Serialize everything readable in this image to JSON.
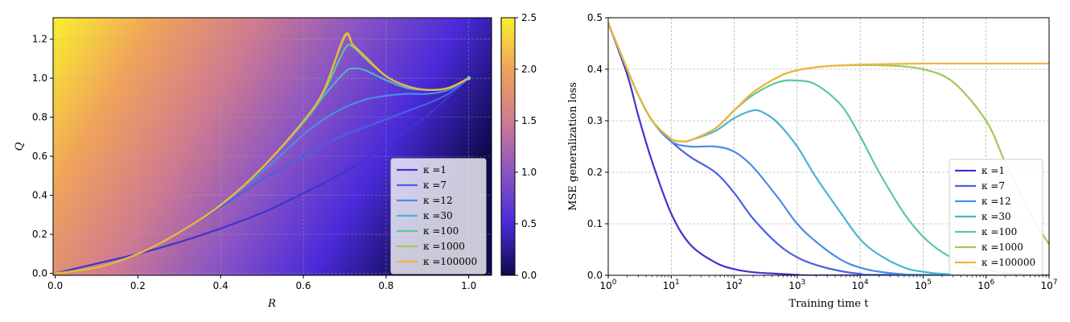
{
  "chart_data": [
    {
      "type": "line",
      "background": "heatmap",
      "xlabel": "R",
      "ylabel": "Q",
      "xlim": [
        -0.005,
        1.055
      ],
      "ylim": [
        -0.01,
        1.31
      ],
      "xticks": [
        "0.0",
        "0.2",
        "0.4",
        "0.6",
        "0.8",
        "1.0"
      ],
      "yticks": [
        "0.0",
        "0.2",
        "0.4",
        "0.6",
        "0.8",
        "1.0",
        "1.2"
      ],
      "grid": true,
      "legend_position": "lower-right",
      "colorbar": {
        "range": [
          0.0,
          2.5
        ],
        "ticks": [
          "0.0",
          "0.5",
          "1.0",
          "1.5",
          "2.0",
          "2.5"
        ],
        "colormap": "plasma-like",
        "colors": [
          "#0d0a4e",
          "#4a2ad9",
          "#8a55c4",
          "#d07b8f",
          "#f0a35a",
          "#f9f02e"
        ]
      },
      "series": [
        {
          "name": "κ =1",
          "color": "#3f34cd",
          "x": [
            0,
            0.1,
            0.2,
            0.3,
            0.4,
            0.5,
            0.6,
            0.7,
            0.8,
            0.9,
            1.0
          ],
          "y": [
            0,
            0.05,
            0.1,
            0.16,
            0.23,
            0.31,
            0.41,
            0.52,
            0.66,
            0.81,
            1.0
          ]
        },
        {
          "name": "κ =7",
          "color": "#4b60e4",
          "x": [
            0,
            0.1,
            0.2,
            0.3,
            0.4,
            0.5,
            0.6,
            0.65,
            0.7,
            0.75,
            0.8,
            0.85,
            0.9,
            0.95,
            1.0
          ],
          "y": [
            0,
            0.03,
            0.1,
            0.21,
            0.34,
            0.48,
            0.6,
            0.66,
            0.71,
            0.75,
            0.79,
            0.83,
            0.87,
            0.92,
            1.0
          ]
        },
        {
          "name": "κ =12",
          "color": "#4b8de6",
          "x": [
            0,
            0.1,
            0.2,
            0.3,
            0.4,
            0.5,
            0.6,
            0.65,
            0.7,
            0.75,
            0.8,
            0.85,
            0.9,
            0.95,
            1.0
          ],
          "y": [
            0,
            0.03,
            0.1,
            0.21,
            0.35,
            0.52,
            0.71,
            0.79,
            0.85,
            0.89,
            0.91,
            0.92,
            0.92,
            0.94,
            1.0
          ]
        },
        {
          "name": "κ =30",
          "color": "#4cb3cf",
          "x": [
            0,
            0.1,
            0.2,
            0.3,
            0.4,
            0.5,
            0.6,
            0.65,
            0.7,
            0.72,
            0.75,
            0.8,
            0.85,
            0.9,
            0.95,
            1.0
          ],
          "y": [
            0,
            0.03,
            0.1,
            0.21,
            0.35,
            0.54,
            0.77,
            0.91,
            1.03,
            1.05,
            1.04,
            0.99,
            0.95,
            0.94,
            0.95,
            1.0
          ]
        },
        {
          "name": "κ =100",
          "color": "#5cc89a",
          "x": [
            0,
            0.1,
            0.2,
            0.3,
            0.4,
            0.5,
            0.6,
            0.65,
            0.7,
            0.72,
            0.75,
            0.8,
            0.85,
            0.9,
            0.95,
            1.0
          ],
          "y": [
            0,
            0.03,
            0.1,
            0.21,
            0.35,
            0.54,
            0.78,
            0.93,
            1.15,
            1.16,
            1.1,
            1.01,
            0.96,
            0.94,
            0.95,
            1.0
          ]
        },
        {
          "name": "κ =1000",
          "color": "#a3c85a",
          "x": [
            0,
            0.1,
            0.2,
            0.3,
            0.4,
            0.5,
            0.6,
            0.65,
            0.7,
            0.72,
            0.75,
            0.8,
            0.85,
            0.9,
            0.95,
            1.0
          ],
          "y": [
            0,
            0.03,
            0.1,
            0.21,
            0.35,
            0.54,
            0.78,
            0.94,
            1.21,
            1.17,
            1.11,
            1.01,
            0.96,
            0.94,
            0.95,
            1.0
          ]
        },
        {
          "name": "κ =100000",
          "color": "#f0b43c",
          "x": [
            0,
            0.1,
            0.2,
            0.3,
            0.4,
            0.5,
            0.6,
            0.65,
            0.7,
            0.72,
            0.75,
            0.8,
            0.85,
            0.9,
            0.95,
            1.0
          ],
          "y": [
            0,
            0.03,
            0.1,
            0.21,
            0.35,
            0.54,
            0.78,
            0.94,
            1.22,
            1.17,
            1.11,
            1.01,
            0.96,
            0.94,
            0.95,
            1.0
          ]
        }
      ]
    },
    {
      "type": "line",
      "xlabel": "Training time t",
      "ylabel": "MSE generalization loss",
      "xscale": "log",
      "xlim": [
        1,
        10000000
      ],
      "ylim": [
        0,
        0.5
      ],
      "xticks": [
        "10^0",
        "10^1",
        "10^2",
        "10^3",
        "10^4",
        "10^5",
        "10^6",
        "10^7"
      ],
      "yticks": [
        "0.0",
        "0.1",
        "0.2",
        "0.3",
        "0.4",
        "0.5"
      ],
      "grid": true,
      "legend_position": "lower-right",
      "series": [
        {
          "name": "κ =1",
          "color": "#3f34cd",
          "x": [
            1,
            2,
            3,
            5,
            10,
            20,
            50,
            100,
            200,
            500,
            1000,
            3000,
            10000000
          ],
          "y": [
            0.49,
            0.39,
            0.31,
            0.22,
            0.12,
            0.06,
            0.025,
            0.012,
            0.006,
            0.003,
            0.001,
            0.0,
            0.0
          ]
        },
        {
          "name": "κ =7",
          "color": "#4b60e4",
          "x": [
            1,
            2,
            3,
            5,
            10,
            20,
            50,
            100,
            200,
            500,
            1000,
            2000,
            5000,
            10000,
            20000,
            10000000
          ],
          "y": [
            0.49,
            0.4,
            0.35,
            0.3,
            0.26,
            0.23,
            0.2,
            0.16,
            0.11,
            0.06,
            0.035,
            0.02,
            0.008,
            0.003,
            0.001,
            0.0
          ]
        },
        {
          "name": "κ =12",
          "color": "#4b8de6",
          "x": [
            1,
            2,
            3,
            5,
            10,
            20,
            50,
            100,
            200,
            500,
            1000,
            2000,
            5000,
            10000,
            20000,
            50000,
            100000,
            10000000
          ],
          "y": [
            0.49,
            0.4,
            0.35,
            0.3,
            0.26,
            0.25,
            0.25,
            0.24,
            0.21,
            0.15,
            0.1,
            0.065,
            0.03,
            0.015,
            0.007,
            0.002,
            0.001,
            0.0
          ]
        },
        {
          "name": "κ =30",
          "color": "#4cb3cf",
          "x": [
            1,
            2,
            3,
            5,
            10,
            15,
            20,
            50,
            100,
            200,
            300,
            500,
            1000,
            2000,
            5000,
            10000,
            20000,
            50000,
            100000,
            300000,
            10000000
          ],
          "y": [
            0.49,
            0.4,
            0.35,
            0.3,
            0.265,
            0.26,
            0.262,
            0.28,
            0.305,
            0.32,
            0.315,
            0.295,
            0.25,
            0.19,
            0.12,
            0.07,
            0.04,
            0.015,
            0.007,
            0.002,
            0.0
          ]
        },
        {
          "name": "κ =100",
          "color": "#5cc89a",
          "x": [
            1,
            2,
            3,
            5,
            10,
            15,
            20,
            50,
            100,
            200,
            500,
            1000,
            2000,
            5000,
            10000,
            20000,
            50000,
            100000,
            200000,
            500000,
            1000000,
            3000000,
            10000000
          ],
          "y": [
            0.49,
            0.4,
            0.35,
            0.3,
            0.265,
            0.26,
            0.262,
            0.285,
            0.32,
            0.35,
            0.375,
            0.378,
            0.37,
            0.33,
            0.27,
            0.2,
            0.12,
            0.075,
            0.045,
            0.02,
            0.01,
            0.003,
            0.0
          ]
        },
        {
          "name": "κ =1000",
          "color": "#a3c85a",
          "x": [
            1,
            2,
            3,
            5,
            10,
            15,
            20,
            50,
            100,
            200,
            500,
            1000,
            3000,
            10000,
            30000,
            100000,
            300000,
            1000000,
            2000000,
            5000000,
            10000000
          ],
          "y": [
            0.49,
            0.4,
            0.35,
            0.3,
            0.265,
            0.26,
            0.262,
            0.285,
            0.32,
            0.355,
            0.385,
            0.398,
            0.406,
            0.408,
            0.407,
            0.4,
            0.375,
            0.3,
            0.22,
            0.12,
            0.06
          ]
        },
        {
          "name": "κ =100000",
          "color": "#f0b43c",
          "x": [
            1,
            2,
            3,
            5,
            10,
            15,
            20,
            50,
            100,
            200,
            500,
            1000,
            3000,
            10000,
            30000,
            100000,
            10000000
          ],
          "y": [
            0.49,
            0.4,
            0.35,
            0.3,
            0.265,
            0.26,
            0.262,
            0.285,
            0.32,
            0.355,
            0.385,
            0.398,
            0.406,
            0.409,
            0.41,
            0.411,
            0.411
          ]
        }
      ]
    }
  ]
}
